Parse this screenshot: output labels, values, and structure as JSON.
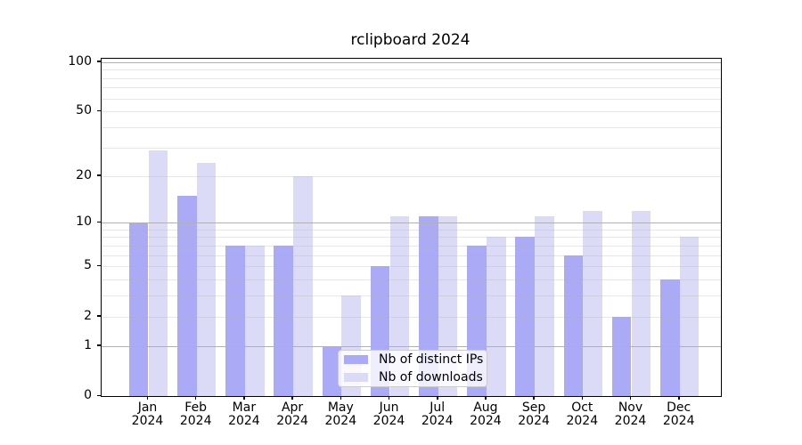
{
  "chart_data": {
    "type": "bar",
    "title": "rclipboard 2024",
    "categories": [
      "Jan",
      "Feb",
      "Mar",
      "Apr",
      "May",
      "Jun",
      "Jul",
      "Aug",
      "Sep",
      "Oct",
      "Nov",
      "Dec"
    ],
    "x_second_line": "2024",
    "series": [
      {
        "key": "ips",
        "name": "Nb of distinct IPs",
        "color": "#aaaaf6",
        "values": [
          10,
          15,
          7,
          7,
          1,
          5,
          11,
          7,
          8,
          6,
          2,
          4
        ]
      },
      {
        "key": "downloads",
        "name": "Nb of downloads",
        "color": "#dbdbf8",
        "values": [
          29,
          24,
          7,
          20,
          3,
          11,
          11,
          8,
          11,
          12,
          12,
          8
        ]
      }
    ],
    "yscale": "log1p",
    "ylim": [
      0,
      102
    ],
    "yticks": [
      0,
      1,
      2,
      5,
      10,
      20,
      50,
      100
    ],
    "major_gridlines": [
      1,
      10,
      100
    ],
    "minor_gridlines": [
      2,
      3,
      4,
      5,
      6,
      7,
      8,
      9,
      20,
      30,
      40,
      50,
      60,
      70,
      80,
      90
    ],
    "grid": true,
    "legend_position": "lower center",
    "colors": {
      "major_grid": "#b0b0b0",
      "minor_grid_rgba": "rgba(176,176,176,0.30)",
      "axis": "#000000",
      "text": "#000000",
      "background": "#ffffff"
    }
  }
}
